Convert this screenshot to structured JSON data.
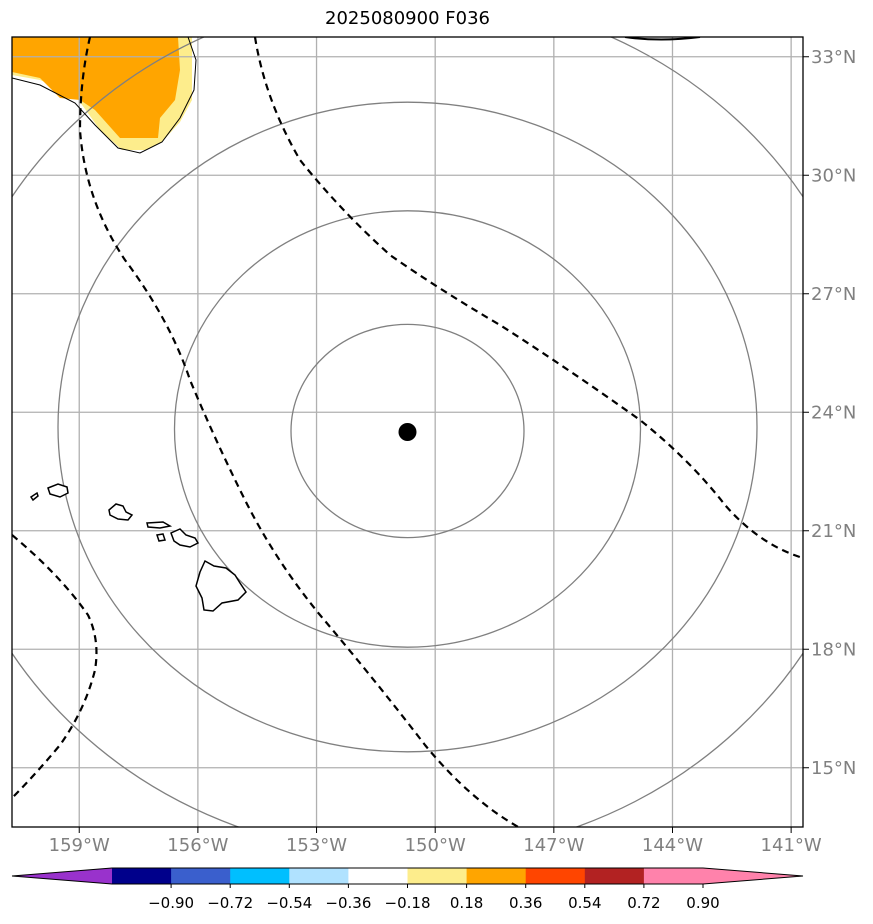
{
  "title": "2025080900 F036",
  "map": {
    "lon_range": [
      -160.7,
      -140.7
    ],
    "lat_range": [
      13.5,
      33.5
    ],
    "lon_ticks": [
      {
        "value": -159,
        "label": "159°W"
      },
      {
        "value": -156,
        "label": "156°W"
      },
      {
        "value": -153,
        "label": "153°W"
      },
      {
        "value": -150,
        "label": "150°W"
      },
      {
        "value": -147,
        "label": "147°W"
      },
      {
        "value": -144,
        "label": "144°W"
      },
      {
        "value": -141,
        "label": "141°W"
      }
    ],
    "lat_ticks": [
      {
        "value": 33,
        "label": "33°N"
      },
      {
        "value": 30,
        "label": "30°N"
      },
      {
        "value": 27,
        "label": "27°N"
      },
      {
        "value": 24,
        "label": "24°N"
      },
      {
        "value": 21,
        "label": "21°N"
      },
      {
        "value": 18,
        "label": "18°N"
      },
      {
        "value": 15,
        "label": "15°N"
      }
    ],
    "gridlines": true,
    "center_marker": {
      "lon": -150.7,
      "lat": 23.5
    },
    "range_ring_count": 4,
    "colors": {
      "grid": "#b0b0b0",
      "ring": "#808080",
      "contour": "#000000",
      "shade_light": "#fded8c",
      "shade_orange": "#ffa500",
      "tick_label": "#808080"
    }
  },
  "colorbar": {
    "tick_labels": [
      "−0.90",
      "−0.72",
      "−0.54",
      "−0.36",
      "−0.18",
      "0.18",
      "0.36",
      "0.54",
      "0.72",
      "0.90"
    ],
    "colors": [
      "#9932cc",
      "#00008b",
      "#3a5fcd",
      "#00bfff",
      "#b0e2ff",
      "#ffffff",
      "#fded8c",
      "#ffa500",
      "#ff4500",
      "#b22222",
      "#ff82ab",
      "#ff82ab"
    ]
  }
}
